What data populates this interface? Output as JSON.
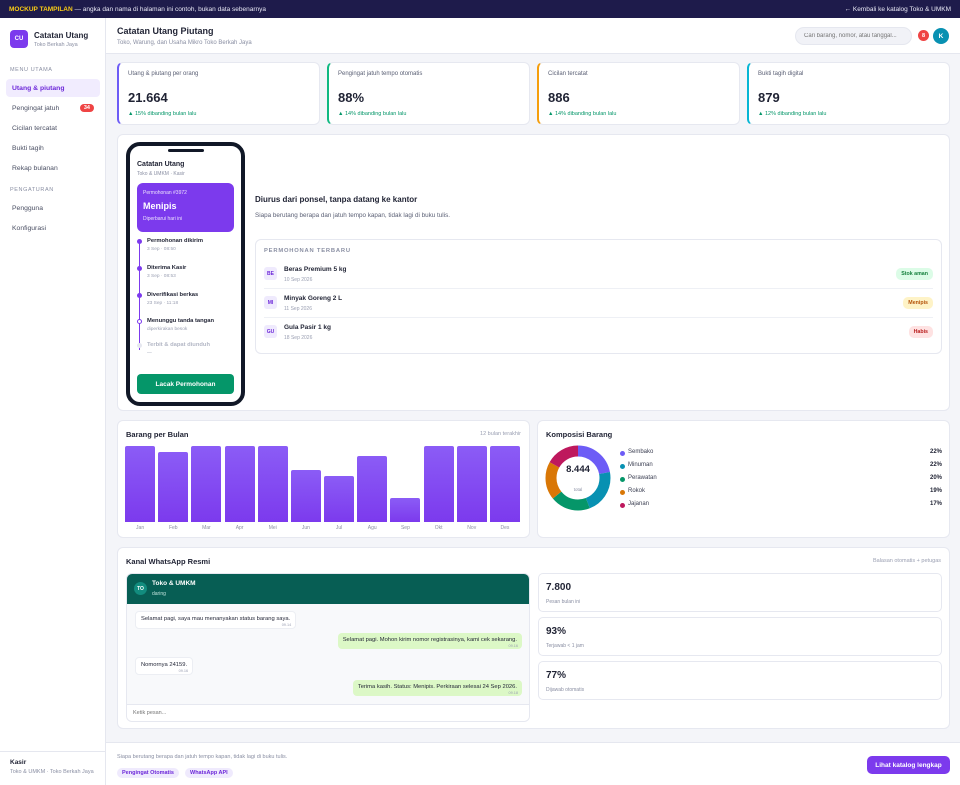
{
  "banner": {
    "tag": "MOCKUP TAMPILAN",
    "text": " — angka dan nama di halaman ini contoh, bukan data sebenarnya",
    "back_link": "← Kembali ke katalog Toko & UMKM"
  },
  "brand": {
    "initials": "CU",
    "name": "Catatan Utang",
    "sub": "Toko Berkah Jaya"
  },
  "sidebar": {
    "section_main": "MENU UTAMA",
    "section_settings": "PENGATURAN",
    "items": [
      {
        "label": "Utang & piutang",
        "active": true
      },
      {
        "label": "Pengingat jatuh",
        "badge": "34"
      },
      {
        "label": "Cicilan tercatat"
      },
      {
        "label": "Bukti tagih"
      },
      {
        "label": "Rekap bulanan"
      }
    ],
    "settings_items": [
      {
        "label": "Pengguna"
      },
      {
        "label": "Konfigurasi"
      }
    ],
    "user": {
      "role": "Kasir",
      "org": "Toko & UMKM · Toko Berkah Jaya"
    }
  },
  "header": {
    "title": "Catatan Utang Piutang",
    "subtitle": "Toko, Warung, dan Usaha Mikro Toko Berkah Jaya",
    "search_placeholder": "Cari barang, nomor, atau tanggal...",
    "notif_count": "8",
    "avatar": "K"
  },
  "stats": [
    {
      "label": "Utang & piutang per orang",
      "value": "21.664",
      "trend": "▲ 15% dibanding bulan lalu",
      "accent": "#6d5cf6"
    },
    {
      "label": "Pengingat jatuh tempo otomatis",
      "value": "88%",
      "trend": "▲ 14% dibanding bulan lalu",
      "accent": "#10b981"
    },
    {
      "label": "Cicilan tercatat",
      "value": "886",
      "trend": "▲ 14% dibanding bulan lalu",
      "accent": "#f59e0b"
    },
    {
      "label": "Bukti tagih digital",
      "value": "879",
      "trend": "▲ 12% dibanding bulan lalu",
      "accent": "#06b6d4"
    }
  ],
  "phone": {
    "title": "Catatan Utang",
    "subtitle": "Toko & UMKM · Kasir",
    "card": {
      "ref": "Permohonan #3972",
      "status": "Menipis",
      "note": "Diperbarui hari ini"
    },
    "steps": [
      {
        "label": "Permohonan dikirim",
        "time": "3 Sep · 08:50",
        "state": "done"
      },
      {
        "label": "Diterima Kasir",
        "time": "3 Sep · 08:53",
        "state": "done"
      },
      {
        "label": "Diverifikasi berkas",
        "time": "23 Sep · 11:18",
        "state": "done"
      },
      {
        "label": "Menunggu tanda tangan",
        "time": "diperkirakan besok",
        "state": "current"
      },
      {
        "label": "Terbit & dapat diunduh",
        "time": "—",
        "state": "pending"
      }
    ],
    "button": "Lacak Permohonan"
  },
  "feature": {
    "title": "Diurus dari ponsel, tanpa datang ke kantor",
    "desc": "Siapa berutang berapa dan jatuh tempo kapan, tidak lagi di buku tulis.",
    "recent_title": "PERMOHONAN TERBARU",
    "recent": [
      {
        "ini": "BE",
        "name": "Beras Premium 5 kg",
        "date": "10 Sep 2026",
        "badge": "Stok aman",
        "kind": "ok"
      },
      {
        "ini": "MI",
        "name": "Minyak Goreng 2 L",
        "date": "11 Sep 2026",
        "badge": "Menipis",
        "kind": "warn"
      },
      {
        "ini": "GU",
        "name": "Gula Pasir 1 kg",
        "date": "18 Sep 2026",
        "badge": "Habis",
        "kind": "bad"
      }
    ]
  },
  "bar_section": {
    "title": "Barang per Bulan",
    "note": "12 bulan terakhir"
  },
  "pie_section": {
    "title": "Komposisi Barang",
    "total": "8.444",
    "total_label": "total"
  },
  "chart_data": [
    {
      "type": "bar",
      "title": "Barang per Bulan",
      "categories": [
        "Jan",
        "Feb",
        "Mar",
        "Apr",
        "Mei",
        "Jun",
        "Jul",
        "Agu",
        "Sep",
        "Okt",
        "Nov",
        "Des"
      ],
      "values": [
        100,
        92,
        100,
        100,
        100,
        68,
        61,
        87,
        32,
        100,
        100,
        100
      ],
      "ylim": [
        0,
        100
      ],
      "grid": false,
      "color": "#7c3aed"
    },
    {
      "type": "pie",
      "title": "Komposisi Barang",
      "categories": [
        "Sembako",
        "Minuman",
        "Perawatan",
        "Rokok",
        "Jajanan"
      ],
      "values": [
        22,
        22,
        20,
        19,
        17
      ],
      "labels": [
        "22%",
        "22%",
        "20%",
        "19%",
        "17%"
      ],
      "colors": [
        "#6d5cf6",
        "#0891b2",
        "#059669",
        "#d97706",
        "#be185d"
      ],
      "legend": "right"
    }
  ],
  "wa": {
    "title": "Kanal WhatsApp Resmi",
    "note": "Balasan otomatis + petugas",
    "contact": {
      "initials": "TO",
      "name": "Toko & UMKM",
      "status": "daring"
    },
    "messages": [
      {
        "dir": "in",
        "text": "Selamat pagi, saya mau menanyakan status barang saya.",
        "time": "09.14"
      },
      {
        "dir": "out",
        "text": "Selamat pagi. Mohon kirim nomor registrasinya, kami cek sekarang.",
        "time": "09.16"
      },
      {
        "dir": "in",
        "text": "Nomornya 24159.",
        "time": "09.16"
      },
      {
        "dir": "out",
        "text": "Terima kasih. Status: Menipis. Perkiraan selesai 24 Sep 2026.",
        "time": "09.18"
      }
    ],
    "input_placeholder": "Ketik pesan...",
    "stats": [
      {
        "value": "7.800",
        "label": "Pesan bulan ini"
      },
      {
        "value": "93%",
        "label": "Terjawab < 1 jam"
      },
      {
        "value": "77%",
        "label": "Dijawab otomatis"
      }
    ]
  },
  "footer": {
    "text": "Siapa berutang berapa dan jatuh tempo kapan, tidak lagi di buku tulis.",
    "chips": [
      "Pengingat Otomatis",
      "WhatsApp API"
    ],
    "cta": "Lihat katalog lengkap"
  }
}
